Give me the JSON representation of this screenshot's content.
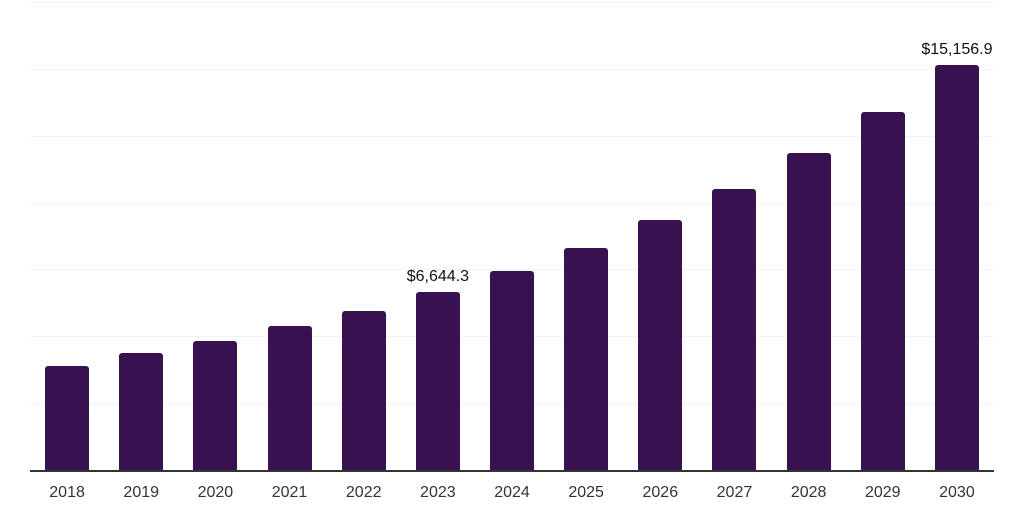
{
  "chart_data": {
    "type": "bar",
    "title": "",
    "xlabel": "",
    "ylabel": "",
    "categories": [
      "2018",
      "2019",
      "2020",
      "2021",
      "2022",
      "2023",
      "2024",
      "2025",
      "2026",
      "2027",
      "2028",
      "2029",
      "2030"
    ],
    "values": [
      3880,
      4360,
      4810,
      5380,
      5930,
      6644.3,
      7460,
      8320,
      9360,
      10520,
      11860,
      13390,
      15156.9
    ],
    "annotations": [
      {
        "category": "2023",
        "text": "$6,644.3"
      },
      {
        "category": "2030",
        "text": "$15,156.9"
      }
    ],
    "ylim": [
      0,
      17500
    ],
    "gridline_step": 2500,
    "grid": true,
    "legend": "none",
    "colors": {
      "bar": "#371150",
      "gridline": "#f2f2f2",
      "axis_line": "#333333",
      "tick_label": "#333333",
      "annotation": "#111111",
      "background": "#ffffff"
    }
  }
}
